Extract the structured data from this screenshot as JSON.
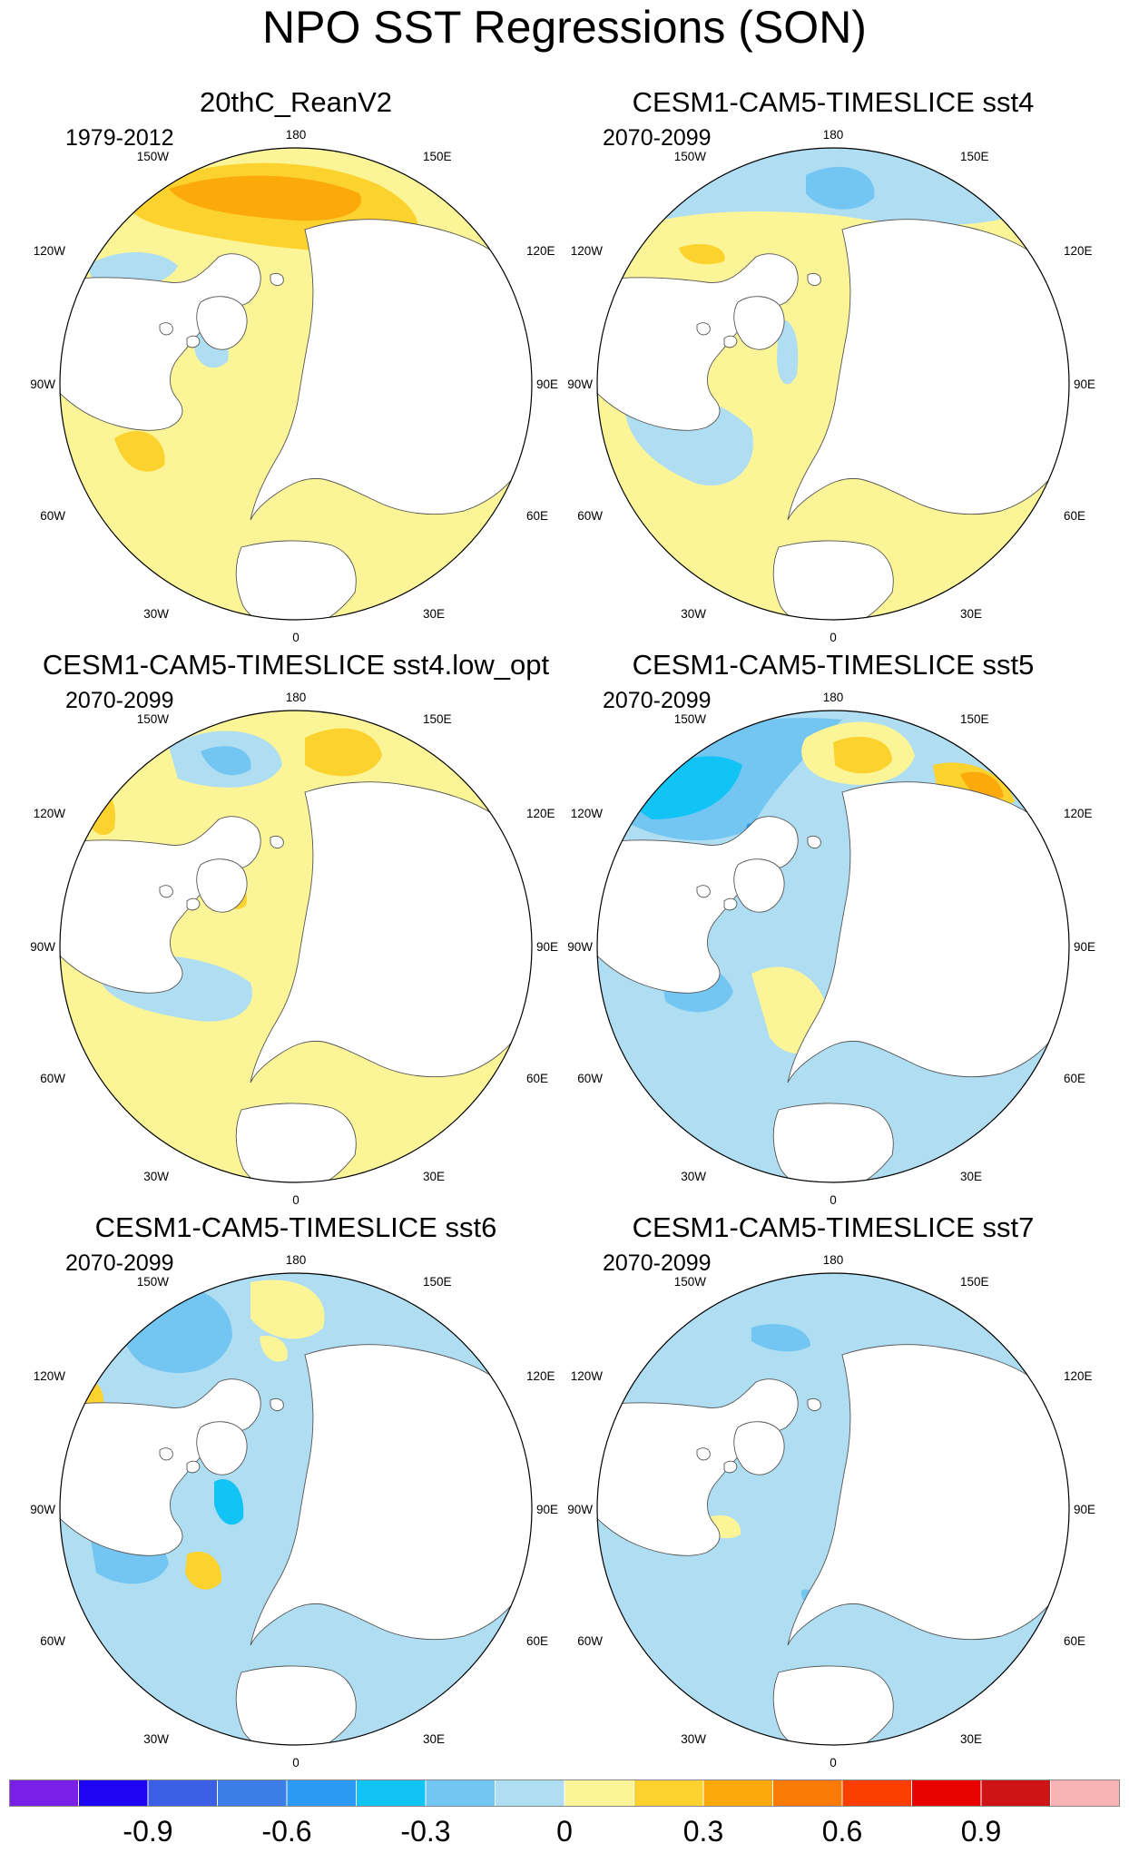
{
  "title": "NPO SST Regressions (SON)",
  "colors": {
    "neg09": "#7A1FE8",
    "neg08": "#1E06F5",
    "neg07": "#3A5EE4",
    "neg06": "#3B7EE8",
    "neg05": "#2A9AF5",
    "neg04": "#12C3F5",
    "neg03": "#74C6F2",
    "neg02": "#AFDDF2",
    "pos0": "#FCF598",
    "pos01": "#FCD22E",
    "pos02": "#FCA90B",
    "pos03": "#FA7A07",
    "pos04": "#FA3E00",
    "pos05": "#E80200",
    "pos06": "#CE1414",
    "pos07": "#F8B4B4",
    "land": "#ffffff",
    "coast": "#555555"
  },
  "lon_labels": {
    "top": "180",
    "upper_left": "150W",
    "upper_right": "150E",
    "left_high": "120W",
    "right_high": "120E",
    "left_mid": "90W",
    "right_mid": "90E",
    "left_low": "60W",
    "right_low": "60E",
    "lower_left": "30W",
    "lower_right": "30E",
    "bottom": "0"
  },
  "panels": [
    {
      "title": "20thC_ReanV2",
      "period": "1979-2012"
    },
    {
      "title": "CESM1-CAM5-TIMESLICE sst4",
      "period": "2070-2099"
    },
    {
      "title": "CESM1-CAM5-TIMESLICE sst4.low_opt",
      "period": "2070-2099"
    },
    {
      "title": "CESM1-CAM5-TIMESLICE sst5",
      "period": "2070-2099"
    },
    {
      "title": "CESM1-CAM5-TIMESLICE sst6",
      "period": "2070-2099"
    },
    {
      "title": "CESM1-CAM5-TIMESLICE sst7",
      "period": "2070-2099"
    }
  ],
  "colorbar": {
    "tick_labels": [
      "-0.9",
      "-0.6",
      "-0.3",
      "0",
      "0.3",
      "0.6",
      "0.9"
    ],
    "colors": [
      "#7A1FE8",
      "#1E06F5",
      "#3A5EE4",
      "#3B7EE8",
      "#2A9AF5",
      "#12C3F5",
      "#74C6F2",
      "#AFDDF2",
      "#FCF598",
      "#FCD22E",
      "#FCA90B",
      "#FA7A07",
      "#FA3E00",
      "#E80200",
      "#CE1414",
      "#F8B4B4"
    ]
  }
}
